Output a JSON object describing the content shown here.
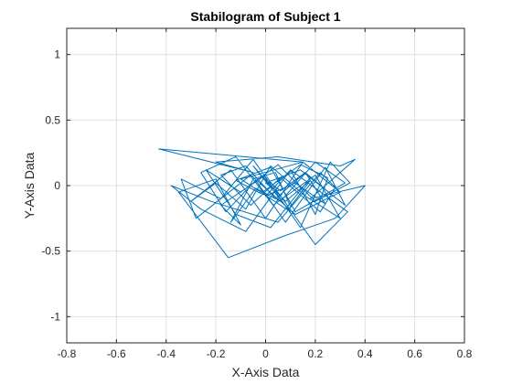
{
  "colors": {
    "line": "#0072bd",
    "grid": "#dfdfdf",
    "axis": "#262626",
    "background": "#ffffff"
  },
  "chart_data": {
    "type": "line",
    "title": "Stabilogram of Subject 1",
    "xlabel": "X-Axis Data",
    "ylabel": "Y-Axis Data",
    "xlim": [
      -0.8,
      0.8
    ],
    "ylim": [
      -1.2,
      1.2
    ],
    "xticks": [
      -0.8,
      -0.6,
      -0.4,
      -0.2,
      0,
      0.2,
      0.4,
      0.6,
      0.8
    ],
    "xtick_labels": [
      "-0.8",
      "-0.6",
      "-0.4",
      "-0.2",
      "0",
      "0.2",
      "0.4",
      "0.6",
      "0.8"
    ],
    "yticks": [
      -1,
      -0.5,
      0,
      0.5,
      1
    ],
    "ytick_labels": [
      "-1",
      "-0.5",
      "0",
      "0.5",
      "1"
    ],
    "grid": true,
    "legend": "none",
    "series": [
      {
        "color": "#0072bd",
        "x": [
          0.02,
          -0.05,
          0.1,
          -0.1,
          0.15,
          -0.43,
          -0.05,
          -0.2,
          0.05,
          0.3,
          0.36,
          0.18,
          0.4,
          0.28,
          0.08,
          -0.15,
          -0.35,
          -0.2,
          -0.1,
          -0.18,
          0.0,
          0.2,
          0.33,
          0.1,
          -0.08,
          -0.26,
          -0.38,
          -0.22,
          0.05,
          0.22,
          0.3,
          0.12,
          -0.06,
          -0.28,
          -0.34,
          -0.18,
          -0.05,
          0.14,
          0.26,
          0.34,
          0.2,
          0.05,
          -0.1,
          -0.24,
          -0.12,
          0.02,
          0.18,
          0.32,
          0.24,
          0.08,
          -0.04,
          -0.16,
          -0.26,
          -0.12,
          0.03,
          0.2,
          0.3,
          0.16,
          0.02,
          -0.08,
          -0.2,
          -0.3,
          -0.14,
          0.0,
          0.15,
          0.28,
          0.22,
          0.06,
          -0.06,
          -0.18,
          -0.08,
          0.04,
          0.16,
          0.24,
          0.12,
          0.0,
          0.1,
          0.2,
          0.25,
          0.14,
          -0.02,
          -0.12,
          0.02,
          0.12,
          0.32,
          0.2,
          0.06,
          -0.04,
          -0.14,
          -0.05,
          0.04,
          0.1,
          0.18,
          0.08,
          -0.02,
          0.06,
          0.16,
          0.26,
          0.14,
          0.0,
          0.05
        ],
        "y": [
          0.0,
          0.15,
          -0.2,
          0.05,
          0.18,
          0.28,
          0.1,
          0.18,
          0.22,
          0.15,
          0.2,
          -0.1,
          0.0,
          -0.25,
          -0.38,
          -0.55,
          -0.05,
          0.05,
          -0.3,
          -0.15,
          0.08,
          -0.45,
          -0.2,
          0.12,
          -0.35,
          -0.18,
          0.0,
          -0.12,
          -0.28,
          0.1,
          -0.05,
          -0.22,
          0.08,
          -0.25,
          0.05,
          -0.1,
          0.2,
          -0.32,
          0.18,
          0.02,
          -0.12,
          0.16,
          -0.05,
          0.12,
          -0.22,
          -0.32,
          0.06,
          -0.15,
          0.14,
          -0.28,
          0.04,
          -0.2,
          0.1,
          0.22,
          -0.15,
          0.08,
          -0.25,
          -0.08,
          0.15,
          -0.18,
          0.02,
          -0.12,
          0.12,
          -0.25,
          0.18,
          -0.02,
          -0.2,
          0.06,
          -0.15,
          0.08,
          0.15,
          -0.1,
          0.1,
          -0.14,
          0.02,
          -0.08,
          0.12,
          -0.22,
          0.06,
          0.16,
          -0.06,
          0.04,
          0.14,
          -0.2,
          0.02,
          0.18,
          -0.12,
          -0.02,
          -0.28,
          0.05,
          0.1,
          -0.16,
          0.04,
          -0.12,
          0.08,
          -0.04,
          0.1,
          -0.06,
          0.12,
          0.02,
          -0.05
        ]
      }
    ]
  }
}
